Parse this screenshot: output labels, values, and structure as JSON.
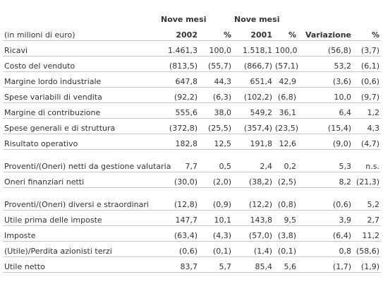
{
  "header": {
    "period_2002": "Nove mesi",
    "period_2001": "Nove mesi",
    "unit": "(in milioni di euro)",
    "year_2002": "2002",
    "pct_2002": "%",
    "year_2001": "2001",
    "pct_2001": "%",
    "variation": "Variazione",
    "pct_variation": "%"
  },
  "rows": [
    {
      "label": "Ricavi",
      "v2002": "1.461,3",
      "p2002": "100,0",
      "v2001": "1.518,1",
      "p2001": "100,0",
      "var": "(56,8)",
      "pvar": "(3,7)"
    },
    {
      "label": "Costo del venduto",
      "v2002": "(813,5)",
      "p2002": "(55,7)",
      "v2001": "(866,7)",
      "p2001": "(57,1)",
      "var": "53,2",
      "pvar": "(6,1)"
    },
    {
      "label": "Margine lordo industriale",
      "v2002": "647,8",
      "p2002": "44,3",
      "v2001": "651,4",
      "p2001": "42,9",
      "var": "(3,6)",
      "pvar": "(0,6)"
    },
    {
      "label": "Spese variabili di vendita",
      "v2002": "(92,2)",
      "p2002": "(6,3)",
      "v2001": "(102,2)",
      "p2001": "(6,8)",
      "var": "10,0",
      "pvar": "(9,7)"
    },
    {
      "label": "Margine di contribuzione",
      "v2002": "555,6",
      "p2002": "38,0",
      "v2001": "549,2",
      "p2001": "36,1",
      "var": "6,4",
      "pvar": "1,2"
    },
    {
      "label": "Spese generali e di struttura",
      "v2002": "(372,8)",
      "p2002": "(25,5)",
      "v2001": "(357,4)",
      "p2001": "(23,5)",
      "var": "(15,4)",
      "pvar": "4,3"
    },
    {
      "label": "Risultato operativo",
      "v2002": "182,8",
      "p2002": "12,5",
      "v2001": "191,8",
      "p2001": "12,6",
      "var": "(9,0)",
      "pvar": "(4,7)"
    },
    {
      "label": "Proventi/(Oneri) netti da gestione valutaria",
      "v2002": "7,7",
      "p2002": "0,5",
      "v2001": "2,4",
      "p2001": "0,2",
      "var": "5,3",
      "pvar": "n.s."
    },
    {
      "label": "Oneri finanziari netti",
      "v2002": "(30,0)",
      "p2002": "(2,0)",
      "v2001": "(38,2)",
      "p2001": "(2,5)",
      "var": "8,2",
      "pvar": "(21,3)"
    },
    {
      "label": "Proventi/(Oneri) diversi e straordinari",
      "v2002": "(12,8)",
      "p2002": "(0,9)",
      "v2001": "(12,2)",
      "p2001": "(0,8)",
      "var": "(0,6)",
      "pvar": "5,2"
    },
    {
      "label": "Utile prima delle imposte",
      "v2002": "147,7",
      "p2002": "10,1",
      "v2001": "143,8",
      "p2001": "9,5",
      "var": "3,9",
      "pvar": "2,7"
    },
    {
      "label": "Imposte",
      "v2002": "(63,4)",
      "p2002": "(4,3)",
      "v2001": "(57,0)",
      "p2001": "(3,8)",
      "var": "(6,4)",
      "pvar": "11,2"
    },
    {
      "label": "(Utile)/Perdita azionisti terzi",
      "v2002": "(0,6)",
      "p2002": "(0,1)",
      "v2001": "(1,4)",
      "p2001": "(0,1)",
      "var": "0,8",
      "pvar": "(58,6)"
    },
    {
      "label": "Utile netto",
      "v2002": "83,7",
      "p2002": "5,7",
      "v2001": "85,4",
      "p2001": "5,6",
      "var": "(1,7)",
      "pvar": "(1,9)"
    }
  ]
}
